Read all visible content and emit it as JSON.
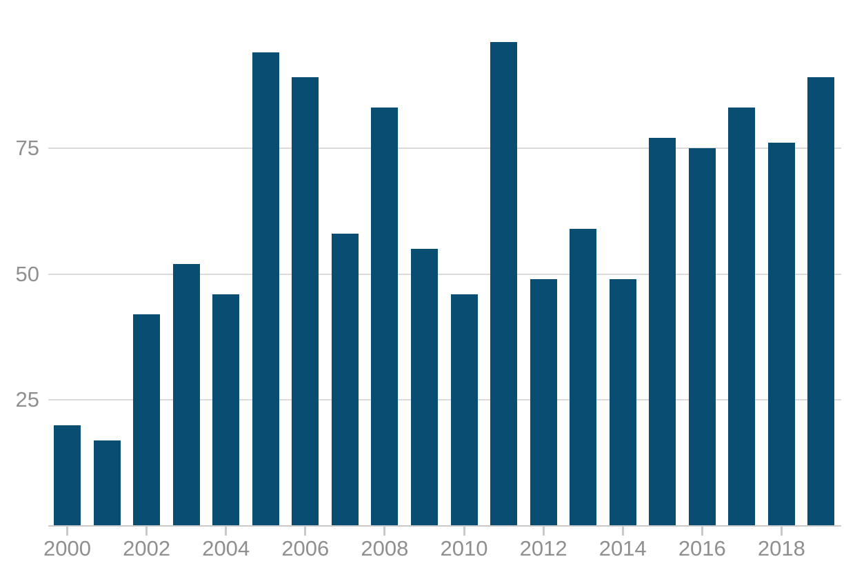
{
  "chart_data": {
    "type": "bar",
    "title": "",
    "subtitle": "",
    "xlabel": "",
    "ylabel": "",
    "categories": [
      "2000",
      "2001",
      "2002",
      "2003",
      "2004",
      "2005",
      "2006",
      "2007",
      "2008",
      "2009",
      "2010",
      "2011",
      "2012",
      "2013",
      "2014",
      "2015",
      "2016",
      "2017",
      "2018",
      "2019"
    ],
    "values": [
      20,
      17,
      42,
      52,
      46,
      94,
      89,
      58,
      83,
      55,
      46,
      96,
      49,
      59,
      49,
      77,
      75,
      83,
      76,
      89
    ],
    "yticks": [
      25,
      50,
      75
    ],
    "x_labeled_categories": [
      "2000",
      "2002",
      "2004",
      "2006",
      "2008",
      "2010",
      "2012",
      "2014",
      "2016",
      "2018"
    ],
    "ylim": [
      0,
      104
    ],
    "grid": true,
    "legend_position": "none",
    "colors": {
      "bar": "#094d73",
      "gridline": "#dadada",
      "axis_line": "#c9c9c9",
      "tick_mark": "#c9c9c9",
      "tick_text": "#8f8f8f",
      "background": "#ffffff"
    }
  }
}
